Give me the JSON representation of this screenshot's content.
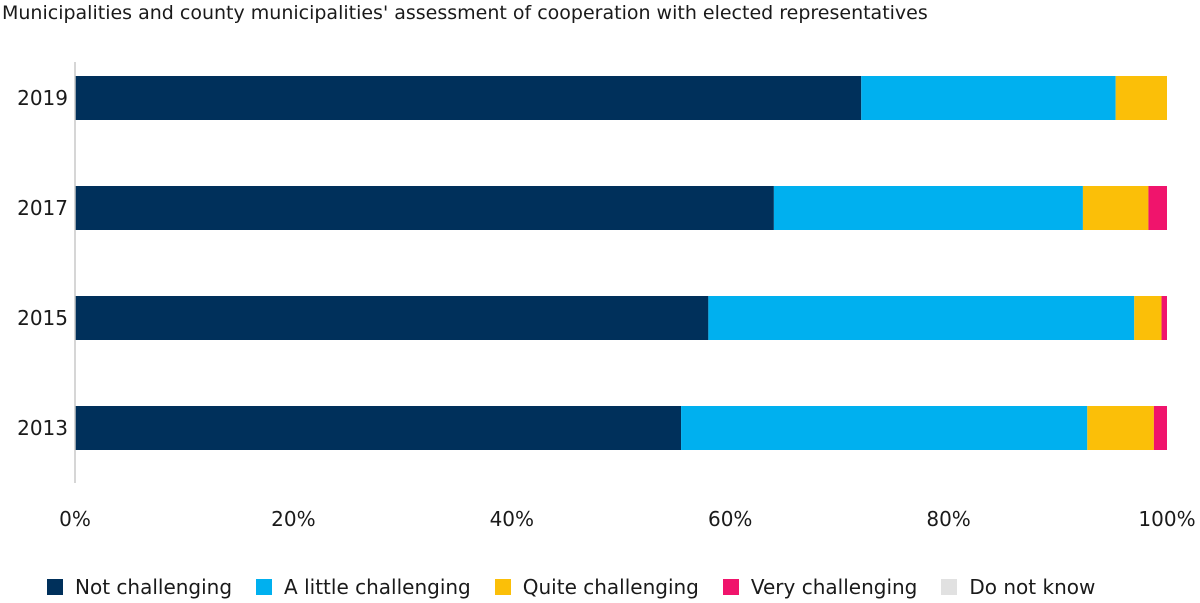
{
  "chart_data": {
    "type": "bar",
    "orientation": "horizontal",
    "stacked": true,
    "title": "Municipalities and county municipalities' assessment of cooperation with elected representatives",
    "categories": [
      "2019",
      "2017",
      "2015",
      "2013"
    ],
    "series": [
      {
        "name": "Not challenging",
        "color": "#00305b",
        "values": [
          72,
          64,
          58,
          55.5
        ]
      },
      {
        "name": "A little challenging",
        "color": "#00b0ef",
        "values": [
          23.3,
          28.3,
          39,
          37.2
        ]
      },
      {
        "name": "Quite challenging",
        "color": "#fbbf08",
        "values": [
          4.7,
          6,
          2.5,
          6.1
        ]
      },
      {
        "name": "Very challenging",
        "color": "#f0146c",
        "values": [
          0,
          1.7,
          0.5,
          1.2
        ]
      },
      {
        "name": "Do not know",
        "color": "#e1e1e1",
        "values": [
          0,
          0,
          0,
          0
        ]
      }
    ],
    "x_ticks": [
      "0%",
      "20%",
      "40%",
      "60%",
      "80%",
      "100%"
    ],
    "xlim": [
      0,
      100
    ],
    "legend_position": "bottom",
    "grid": false
  }
}
